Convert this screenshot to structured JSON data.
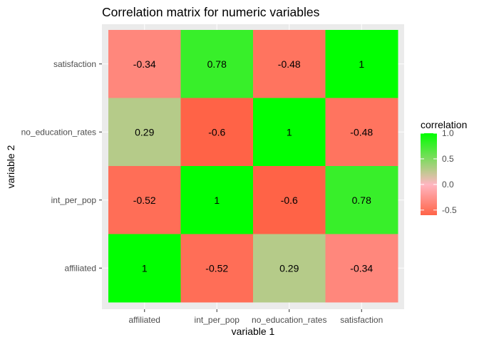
{
  "chart_data": {
    "type": "heatmap",
    "title": "Correlation matrix for numeric variables",
    "xlabel": "variable 1",
    "ylabel": "variable 2",
    "x_categories": [
      "affiliated",
      "int_per_pop",
      "no_education_rates",
      "satisfaction"
    ],
    "y_categories": [
      "affiliated",
      "int_per_pop",
      "no_education_rates",
      "satisfaction"
    ],
    "cells": [
      {
        "x": "affiliated",
        "y": "satisfaction",
        "value": -0.34,
        "label": "-0.34"
      },
      {
        "x": "int_per_pop",
        "y": "satisfaction",
        "value": 0.78,
        "label": "0.78"
      },
      {
        "x": "no_education_rates",
        "y": "satisfaction",
        "value": -0.48,
        "label": "-0.48"
      },
      {
        "x": "satisfaction",
        "y": "satisfaction",
        "value": 1,
        "label": "1"
      },
      {
        "x": "affiliated",
        "y": "no_education_rates",
        "value": 0.29,
        "label": "0.29"
      },
      {
        "x": "int_per_pop",
        "y": "no_education_rates",
        "value": -0.6,
        "label": "-0.6"
      },
      {
        "x": "no_education_rates",
        "y": "no_education_rates",
        "value": 1,
        "label": "1"
      },
      {
        "x": "satisfaction",
        "y": "no_education_rates",
        "value": -0.48,
        "label": "-0.48"
      },
      {
        "x": "affiliated",
        "y": "int_per_pop",
        "value": -0.52,
        "label": "-0.52"
      },
      {
        "x": "int_per_pop",
        "y": "int_per_pop",
        "value": 1,
        "label": "1"
      },
      {
        "x": "no_education_rates",
        "y": "int_per_pop",
        "value": -0.6,
        "label": "-0.6"
      },
      {
        "x": "satisfaction",
        "y": "int_per_pop",
        "value": 0.78,
        "label": "0.78"
      },
      {
        "x": "affiliated",
        "y": "affiliated",
        "value": 1,
        "label": "1"
      },
      {
        "x": "int_per_pop",
        "y": "affiliated",
        "value": -0.52,
        "label": "-0.52"
      },
      {
        "x": "no_education_rates",
        "y": "affiliated",
        "value": 0.29,
        "label": "0.29"
      },
      {
        "x": "satisfaction",
        "y": "affiliated",
        "value": -0.34,
        "label": "-0.34"
      }
    ],
    "legend": {
      "title": "correlation",
      "position": "right",
      "range": [
        -0.6,
        1.0
      ],
      "ticks": [
        {
          "value": 1.0,
          "label": "1.0"
        },
        {
          "value": 0.5,
          "label": "0.5"
        },
        {
          "value": 0.0,
          "label": "0.0"
        },
        {
          "value": -0.5,
          "label": "-0.5"
        }
      ]
    },
    "colors": {
      "low": "#FF6347",
      "mid": "#FFB6C1",
      "high": "#00FF00",
      "panel_background": "#EBEBEB",
      "grid": "#FFFFFF"
    },
    "grid": true
  }
}
